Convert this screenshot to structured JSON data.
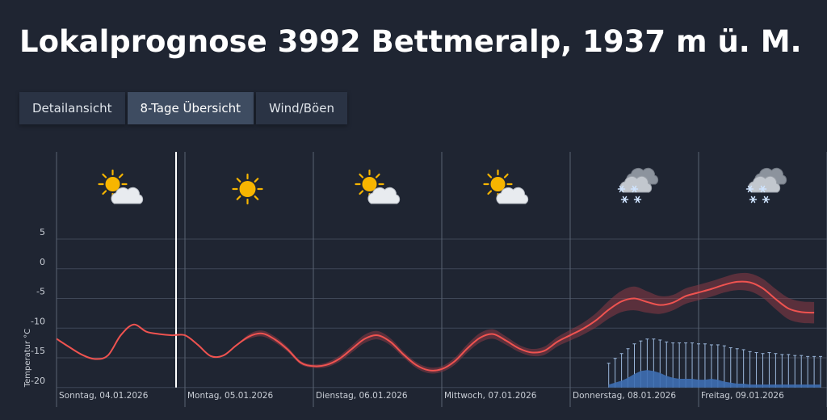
{
  "header": {
    "title": "Lokalprognose 3992 Bettmeralp, 1937 m ü. M."
  },
  "tabs": [
    {
      "label": "Detailansicht",
      "active": false
    },
    {
      "label": "8-Tage Übersicht",
      "active": true
    },
    {
      "label": "Wind/Böen",
      "active": false
    }
  ],
  "chart_data": {
    "type": "line",
    "ylabel": "Temperatur °C",
    "ylim": [
      -20,
      5
    ],
    "yticks": [
      5,
      0,
      -5,
      -10,
      -15,
      -20
    ],
    "grid": true,
    "days": [
      {
        "label": "Sonntag, 04.01.2026",
        "icon": "sun-cloud-icon"
      },
      {
        "label": "Montag, 05.01.2026",
        "icon": "sun-icon"
      },
      {
        "label": "Dienstag, 06.01.2026",
        "icon": "sun-cloud-icon"
      },
      {
        "label": "Mittwoch, 07.01.2026",
        "icon": "sun-cloud-icon"
      },
      {
        "label": "Donnerstag, 08.01.2026",
        "icon": "snow-cloud-icon"
      },
      {
        "label": "Freitag, 09.01.2026",
        "icon": "snow-cloud-icon"
      }
    ],
    "series": [
      {
        "x": [
          0,
          0.1,
          0.2,
          0.3,
          0.4,
          0.5,
          0.6,
          0.7,
          0.8,
          0.9,
          1.0,
          1.1,
          1.2,
          1.3,
          1.4,
          1.5,
          1.6,
          1.7,
          1.8,
          1.9,
          2.0,
          2.1,
          2.2,
          2.3,
          2.4,
          2.5,
          2.6,
          2.7,
          2.8,
          2.9,
          3.0,
          3.1,
          3.2,
          3.3,
          3.4,
          3.5,
          3.6,
          3.7,
          3.8,
          3.9,
          4.0,
          4.1,
          4.2,
          4.3,
          4.4,
          4.5,
          4.6,
          4.7,
          4.8,
          4.9,
          5.0,
          5.1,
          5.2,
          5.3,
          5.4,
          5.5,
          5.6,
          5.7,
          5.8,
          5.9
        ],
        "values": [
          -11.8,
          -13.2,
          -14.5,
          -15.2,
          -14.6,
          -11.2,
          -9.4,
          -10.6,
          -11.0,
          -11.2,
          -11.2,
          -12.8,
          -14.7,
          -14.6,
          -12.9,
          -11.4,
          -10.9,
          -11.9,
          -13.6,
          -15.8,
          -16.4,
          -16.2,
          -15.2,
          -13.5,
          -11.8,
          -11.2,
          -12.3,
          -14.4,
          -16.2,
          -17.1,
          -16.9,
          -15.6,
          -13.4,
          -11.6,
          -11.0,
          -12.1,
          -13.4,
          -14.1,
          -13.8,
          -12.3,
          -11.2,
          -10.1,
          -8.7,
          -6.9,
          -5.5,
          -5.0,
          -5.6,
          -6.1,
          -5.7,
          -4.6,
          -4.0,
          -3.4,
          -2.7,
          -2.2,
          -2.3,
          -3.3,
          -5.1,
          -6.7,
          -7.3,
          -7.4
        ],
        "spread": [
          0,
          0,
          0,
          0,
          0,
          0,
          0,
          0,
          0,
          0,
          0,
          0,
          0,
          0,
          0,
          0.4,
          0.5,
          0.5,
          0.4,
          0.3,
          0.3,
          0.4,
          0.5,
          0.6,
          0.7,
          0.7,
          0.6,
          0.5,
          0.5,
          0.5,
          0.5,
          0.6,
          0.7,
          0.8,
          0.8,
          0.7,
          0.6,
          0.6,
          0.7,
          0.8,
          0.9,
          1.0,
          1.2,
          1.5,
          1.8,
          2.0,
          1.8,
          1.5,
          1.3,
          1.3,
          1.3,
          1.3,
          1.3,
          1.4,
          1.5,
          1.6,
          1.7,
          1.8,
          1.8,
          1.8
        ]
      }
    ],
    "precipitation": {
      "x": [
        4.3,
        4.35,
        4.4,
        4.45,
        4.5,
        4.55,
        4.6,
        4.65,
        4.7,
        4.75,
        4.8,
        4.85,
        4.9,
        4.95,
        5.0,
        5.05,
        5.1,
        5.15,
        5.2,
        5.25,
        5.3,
        5.35,
        5.4,
        5.45,
        5.5,
        5.55,
        5.6,
        5.65,
        5.7,
        5.75,
        5.8,
        5.85,
        5.9,
        5.95
      ],
      "values": [
        0.3,
        0.5,
        0.7,
        1.0,
        1.4,
        1.7,
        1.8,
        1.7,
        1.5,
        1.2,
        1.0,
        0.9,
        0.9,
        0.9,
        0.8,
        0.8,
        0.9,
        0.8,
        0.6,
        0.5,
        0.4,
        0.4,
        0.3,
        0.3,
        0.3,
        0.3,
        0.3,
        0.3,
        0.3,
        0.3,
        0.3,
        0.3,
        0.3,
        0.3
      ],
      "spread": [
        2.5,
        3.0,
        3.5,
        4.0,
        4.5,
        4.8,
        5.0,
        5.0,
        4.9,
        4.7,
        4.6,
        4.6,
        4.6,
        4.6,
        4.5,
        4.5,
        4.4,
        4.4,
        4.3,
        4.1,
        4.0,
        3.9,
        3.7,
        3.6,
        3.5,
        3.6,
        3.5,
        3.4,
        3.4,
        3.3,
        3.3,
        3.2,
        3.2,
        3.2
      ]
    }
  }
}
